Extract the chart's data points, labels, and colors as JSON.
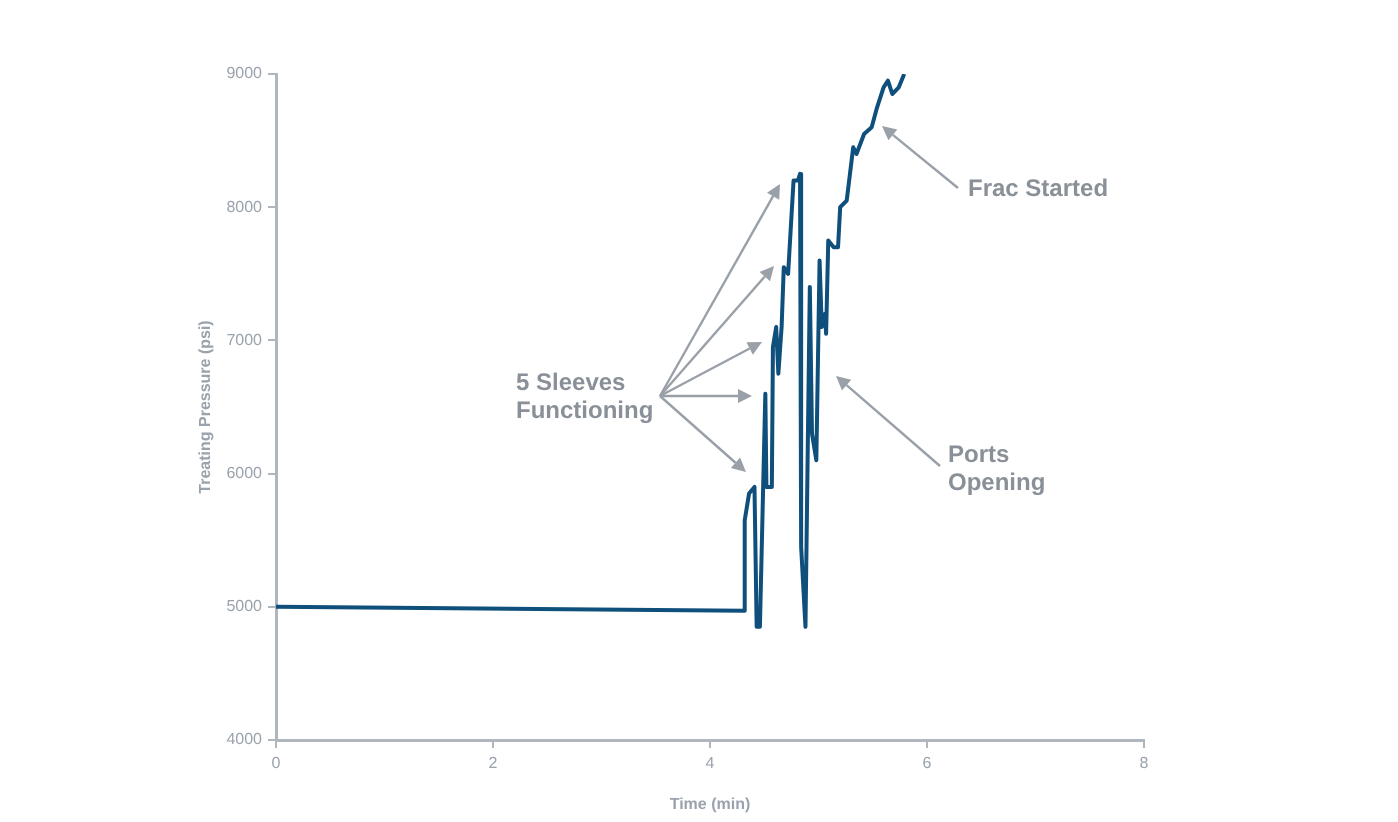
{
  "chart_data": {
    "type": "line",
    "xlabel": "Time (min)",
    "ylabel": "Treating Pressure (psi)",
    "xlim": [
      0,
      8
    ],
    "xticks": [
      0,
      2,
      4,
      6,
      8
    ],
    "ylim": [
      4000,
      9000
    ],
    "yticks": [
      4000,
      5000,
      6000,
      7000,
      8000,
      9000
    ],
    "grid": false,
    "legend": false,
    "marker": "none",
    "line_style": "solid",
    "series": [
      {
        "color": "#0e4f7c",
        "x": [
          0,
          4.32,
          4.32,
          4.36,
          4.41,
          4.43,
          4.46,
          4.51,
          4.52,
          4.57,
          4.58,
          4.61,
          4.63,
          4.66,
          4.68,
          4.72,
          4.77,
          4.81,
          4.83,
          4.84,
          4.88,
          4.92,
          4.94,
          4.98,
          5.01,
          5.03,
          5.06,
          5.07,
          5.09,
          5.14,
          5.18,
          5.2,
          5.26,
          5.32,
          5.35,
          5.42,
          5.49,
          5.54,
          5.6,
          5.64,
          5.68,
          5.74,
          5.79
        ],
        "values": [
          5000,
          4970,
          5650,
          5850,
          5900,
          4850,
          4850,
          6600,
          5900,
          5900,
          6950,
          7100,
          6750,
          7100,
          7550,
          7500,
          8200,
          8200,
          8250,
          5450,
          4850,
          7400,
          6300,
          6100,
          7600,
          7100,
          7200,
          7050,
          7750,
          7700,
          7700,
          8000,
          8050,
          8450,
          8400,
          8550,
          8600,
          8750,
          8900,
          8950,
          8850,
          8900,
          9000
        ]
      }
    ],
    "annotations": [
      "5 Sleeves\nFunctioning",
      "Frac Started",
      "Ports\nOpening"
    ]
  }
}
